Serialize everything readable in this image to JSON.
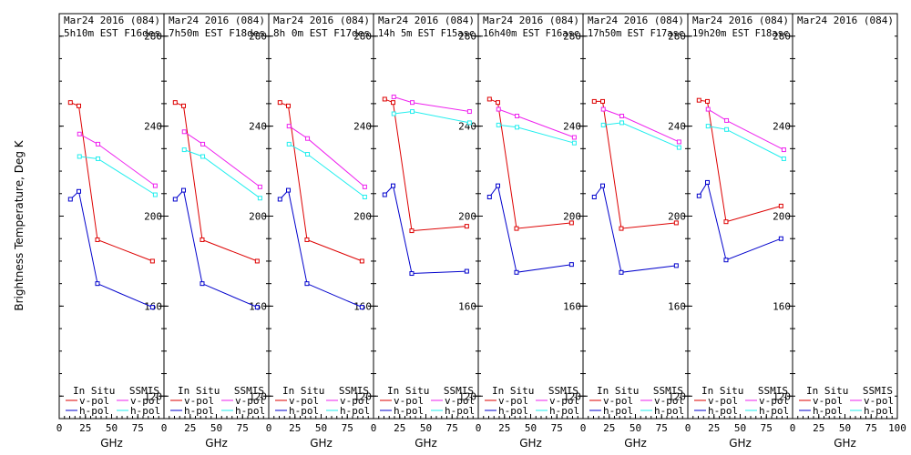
{
  "figure": {
    "ylabel": "Brightness Temperature, Deg K",
    "xunit": "GHz"
  },
  "legend": {
    "in_situ": "In Situ",
    "ssmis": "SSMIS",
    "vpol": "v-pol",
    "hpol": "h-pol"
  },
  "colors": {
    "insitu_v": "#dd0000",
    "insitu_h": "#0000cc",
    "ssmis_v": "#ee22ee",
    "ssmis_h": "#22eeee",
    "axis": "#000000"
  },
  "chart_data": [
    {
      "type": "line",
      "title_line1": "Mar24 2016 (084)",
      "title_line2": "5h10m EST F16des",
      "x_ticks": [
        "0",
        "25",
        "50",
        "75"
      ],
      "y_ticks": [
        "120",
        "160",
        "200",
        "240",
        "280"
      ],
      "xlim": [
        0,
        100
      ],
      "ylim": [
        110,
        290
      ],
      "grid": false,
      "series": [
        {
          "name": "In Situ v-pol",
          "x": [
            10.7,
            18.7,
            36.5,
            89.0
          ],
          "y": [
            250.5,
            249,
            189.5,
            180
          ]
        },
        {
          "name": "In Situ h-pol",
          "x": [
            10.7,
            18.7,
            36.5,
            89.0
          ],
          "y": [
            207.5,
            211,
            170,
            159.5
          ]
        },
        {
          "name": "SSMIS v-pol",
          "x": [
            19.35,
            37.0,
            91.655
          ],
          "y": [
            236.5,
            232,
            213.5
          ]
        },
        {
          "name": "SSMIS h-pol",
          "x": [
            19.35,
            37.0,
            91.655
          ],
          "y": [
            226.5,
            225.5,
            209.5
          ]
        }
      ]
    },
    {
      "type": "line",
      "title_line1": "Mar24 2016 (084)",
      "title_line2": "7h50m EST F18des",
      "x_ticks": [
        "0",
        "25",
        "50",
        "75"
      ],
      "y_ticks": [
        "120",
        "160",
        "200",
        "240",
        "280"
      ],
      "xlim": [
        0,
        100
      ],
      "ylim": [
        110,
        290
      ],
      "grid": false,
      "series": [
        {
          "name": "In Situ v-pol",
          "x": [
            10.7,
            18.7,
            36.5,
            89.0
          ],
          "y": [
            250.5,
            249,
            189.5,
            180
          ]
        },
        {
          "name": "In Situ h-pol",
          "x": [
            10.7,
            18.7,
            36.5,
            89.0
          ],
          "y": [
            207.5,
            211.5,
            170,
            159.5
          ]
        },
        {
          "name": "SSMIS v-pol",
          "x": [
            19.35,
            37.0,
            91.655
          ],
          "y": [
            237.5,
            232,
            213
          ]
        },
        {
          "name": "SSMIS h-pol",
          "x": [
            19.35,
            37.0,
            91.655
          ],
          "y": [
            229.5,
            226.5,
            208
          ]
        }
      ]
    },
    {
      "type": "line",
      "title_line1": "Mar24 2016 (084)",
      "title_line2": "8h 0m EST F17des",
      "x_ticks": [
        "0",
        "25",
        "50",
        "75"
      ],
      "y_ticks": [
        "120",
        "160",
        "200",
        "240",
        "280"
      ],
      "xlim": [
        0,
        100
      ],
      "ylim": [
        110,
        290
      ],
      "grid": false,
      "series": [
        {
          "name": "In Situ v-pol",
          "x": [
            10.7,
            18.7,
            36.5,
            89.0
          ],
          "y": [
            250.5,
            249,
            189.5,
            180
          ]
        },
        {
          "name": "In Situ h-pol",
          "x": [
            10.7,
            18.7,
            36.5,
            89.0
          ],
          "y": [
            207.5,
            211.5,
            170,
            159.5
          ]
        },
        {
          "name": "SSMIS v-pol",
          "x": [
            19.35,
            37.0,
            91.655
          ],
          "y": [
            240,
            234.5,
            213
          ]
        },
        {
          "name": "SSMIS h-pol",
          "x": [
            19.35,
            37.0,
            91.655
          ],
          "y": [
            232,
            227.5,
            208.5
          ]
        }
      ]
    },
    {
      "type": "line",
      "title_line1": "Mar24 2016 (084)",
      "title_line2": "14h 5m EST F15asc",
      "x_ticks": [
        "0",
        "25",
        "50",
        "75"
      ],
      "y_ticks": [
        "120",
        "160",
        "200",
        "240",
        "280"
      ],
      "xlim": [
        0,
        100
      ],
      "ylim": [
        110,
        290
      ],
      "grid": false,
      "series": [
        {
          "name": "In Situ v-pol",
          "x": [
            10.7,
            18.7,
            36.5,
            89.0
          ],
          "y": [
            252,
            250.5,
            193.5,
            195.5
          ]
        },
        {
          "name": "In Situ h-pol",
          "x": [
            10.7,
            18.7,
            36.5,
            89.0
          ],
          "y": [
            209.5,
            213.5,
            174.5,
            175.5
          ]
        },
        {
          "name": "SSMIS v-pol",
          "x": [
            19.35,
            37.0,
            91.655
          ],
          "y": [
            253,
            250.5,
            246.5
          ]
        },
        {
          "name": "SSMIS h-pol",
          "x": [
            19.35,
            37.0,
            91.655
          ],
          "y": [
            245.5,
            246.5,
            241.5
          ]
        }
      ]
    },
    {
      "type": "line",
      "title_line1": "Mar24 2016 (084)",
      "title_line2": "16h40m EST F16asc",
      "x_ticks": [
        "0",
        "25",
        "50",
        "75"
      ],
      "y_ticks": [
        "120",
        "160",
        "200",
        "240",
        "280"
      ],
      "xlim": [
        0,
        100
      ],
      "ylim": [
        110,
        290
      ],
      "grid": false,
      "series": [
        {
          "name": "In Situ v-pol",
          "x": [
            10.7,
            18.7,
            36.5,
            89.0
          ],
          "y": [
            252,
            250.5,
            194.5,
            197
          ]
        },
        {
          "name": "In Situ h-pol",
          "x": [
            10.7,
            18.7,
            36.5,
            89.0
          ],
          "y": [
            208.5,
            213.5,
            175,
            178.5
          ]
        },
        {
          "name": "SSMIS v-pol",
          "x": [
            19.35,
            37.0,
            91.655
          ],
          "y": [
            247.5,
            244.5,
            235
          ]
        },
        {
          "name": "SSMIS h-pol",
          "x": [
            19.35,
            37.0,
            91.655
          ],
          "y": [
            240.5,
            239.5,
            232.5
          ]
        }
      ]
    },
    {
      "type": "line",
      "title_line1": "Mar24 2016 (084)",
      "title_line2": "17h50m EST F17asc",
      "x_ticks": [
        "0",
        "25",
        "50",
        "75"
      ],
      "y_ticks": [
        "120",
        "160",
        "200",
        "240",
        "280"
      ],
      "xlim": [
        0,
        100
      ],
      "ylim": [
        110,
        290
      ],
      "grid": false,
      "series": [
        {
          "name": "In Situ v-pol",
          "x": [
            10.7,
            18.7,
            36.5,
            89.0
          ],
          "y": [
            251,
            251,
            194.5,
            197
          ]
        },
        {
          "name": "In Situ h-pol",
          "x": [
            10.7,
            18.7,
            36.5,
            89.0
          ],
          "y": [
            208.5,
            213.5,
            175,
            178
          ]
        },
        {
          "name": "SSMIS v-pol",
          "x": [
            19.35,
            37.0,
            91.655
          ],
          "y": [
            247.5,
            244.5,
            233
          ]
        },
        {
          "name": "SSMIS h-pol",
          "x": [
            19.35,
            37.0,
            91.655
          ],
          "y": [
            240.5,
            241.5,
            230.5
          ]
        }
      ]
    },
    {
      "type": "line",
      "title_line1": "Mar24 2016 (084)",
      "title_line2": "19h20m EST F18asc",
      "x_ticks": [
        "0",
        "25",
        "50",
        "75"
      ],
      "y_ticks": [
        "120",
        "160",
        "200",
        "240",
        "280"
      ],
      "xlim": [
        0,
        100
      ],
      "ylim": [
        110,
        290
      ],
      "grid": false,
      "series": [
        {
          "name": "In Situ v-pol",
          "x": [
            10.7,
            18.7,
            36.5,
            89.0
          ],
          "y": [
            251.5,
            251,
            197.5,
            204.5
          ]
        },
        {
          "name": "In Situ h-pol",
          "x": [
            10.7,
            18.7,
            36.5,
            89.0
          ],
          "y": [
            209,
            215,
            180.5,
            190
          ]
        },
        {
          "name": "SSMIS v-pol",
          "x": [
            19.35,
            37.0,
            91.655
          ],
          "y": [
            247.5,
            242.5,
            229.5
          ]
        },
        {
          "name": "SSMIS h-pol",
          "x": [
            19.35,
            37.0,
            91.655
          ],
          "y": [
            240,
            238.5,
            225.5
          ]
        }
      ]
    },
    {
      "type": "line",
      "title_line1": "Mar24 2016 (084)",
      "title_line2": "",
      "x_ticks": [
        "0",
        "25",
        "50",
        "75",
        "100"
      ],
      "y_ticks": [],
      "xlim": [
        0,
        100
      ],
      "ylim": [
        110,
        290
      ],
      "grid": false,
      "series": []
    }
  ]
}
